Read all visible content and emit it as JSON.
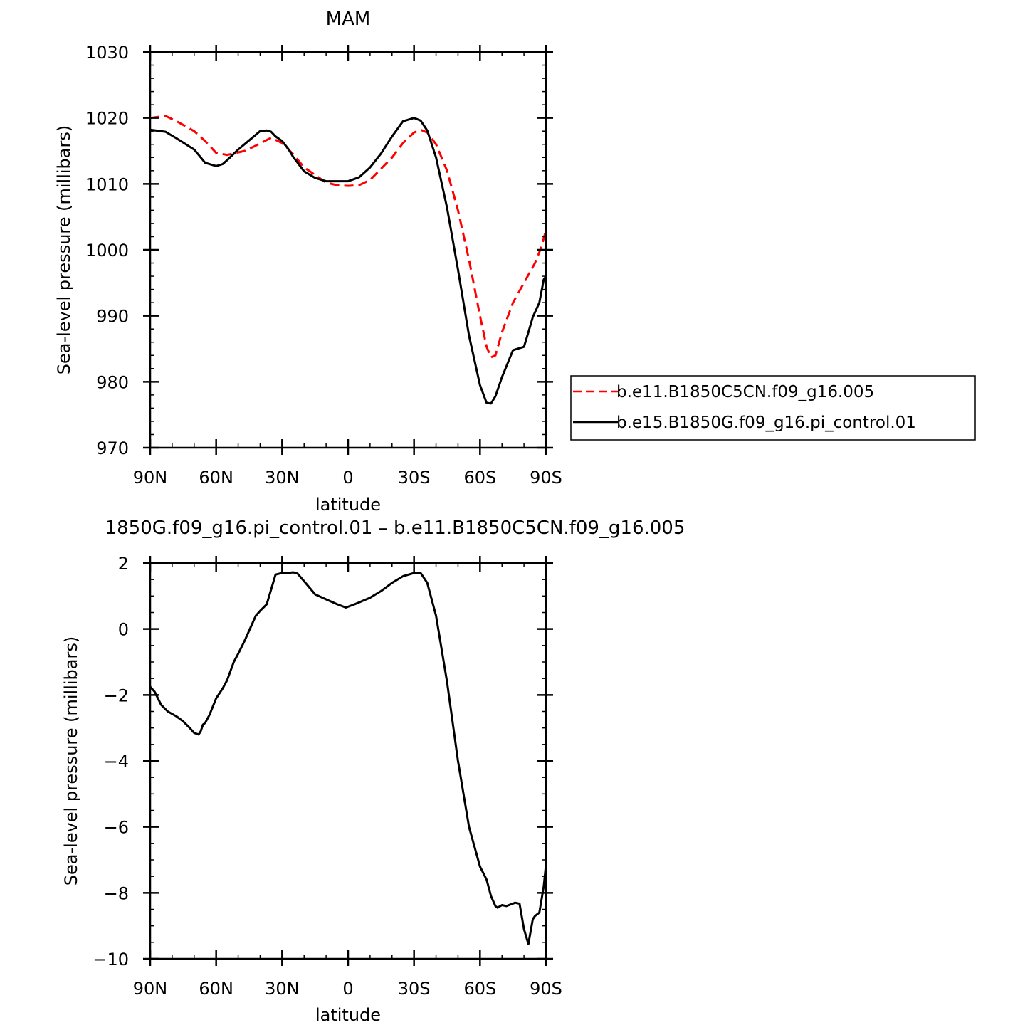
{
  "chart_data": [
    {
      "type": "line",
      "title": "MAM",
      "xlabel": "latitude",
      "ylabel": "Sea-level pressure (millibars)",
      "xlim": [
        90,
        -90
      ],
      "ylim": [
        970,
        1030
      ],
      "xticks": [
        {
          "value": 90,
          "label": "90N"
        },
        {
          "value": 60,
          "label": "60N"
        },
        {
          "value": 30,
          "label": "30N"
        },
        {
          "value": 0,
          "label": "0"
        },
        {
          "value": -30,
          "label": "30S"
        },
        {
          "value": -60,
          "label": "60S"
        },
        {
          "value": -90,
          "label": "90S"
        }
      ],
      "yticks": [
        {
          "value": 1030,
          "label": "1030"
        },
        {
          "value": 1020,
          "label": "1020"
        },
        {
          "value": 1010,
          "label": "1010"
        },
        {
          "value": 1000,
          "label": "1000"
        },
        {
          "value": 990,
          "label": "990"
        },
        {
          "value": 980,
          "label": "980"
        },
        {
          "value": 970,
          "label": "970"
        }
      ],
      "legend_position": "right",
      "series": [
        {
          "name": "b.e11.B1850C5CN.f09_g16.005",
          "color": "#ff0000",
          "dash": "dashed",
          "x": [
            90,
            83,
            78,
            70,
            65,
            60,
            55,
            47,
            42,
            35,
            30,
            25,
            20,
            10,
            5,
            0,
            -5,
            -10,
            -20,
            -25,
            -30,
            -33,
            -36,
            -40,
            -45,
            -50,
            -55,
            -60,
            -63,
            -65,
            -67,
            -70,
            -75,
            -80,
            -85,
            -88,
            -90
          ],
          "y": [
            1020.0,
            1020.3,
            1019.5,
            1018.0,
            1016.5,
            1014.7,
            1014.4,
            1015.0,
            1015.8,
            1017.0,
            1016.2,
            1014.5,
            1012.5,
            1010.2,
            1009.8,
            1009.7,
            1009.8,
            1010.6,
            1014.0,
            1016.2,
            1017.8,
            1018.2,
            1017.8,
            1016.0,
            1012.0,
            1006.0,
            998.5,
            990.0,
            985.3,
            983.7,
            984.0,
            987.5,
            992.0,
            995.0,
            998.0,
            1000.5,
            1003.0
          ]
        },
        {
          "name": "b.e15.B1850G.f09_g16.pi_control.01",
          "color": "#000000",
          "dash": "solid",
          "x": [
            90,
            83,
            78,
            70,
            65,
            60,
            57,
            55,
            50,
            45,
            40,
            37,
            35,
            33,
            30,
            27,
            25,
            20,
            15,
            10,
            5,
            0,
            -5,
            -10,
            -15,
            -20,
            -25,
            -30,
            -33,
            -36,
            -40,
            -45,
            -50,
            -55,
            -60,
            -63,
            -65,
            -67,
            -70,
            -75,
            -80,
            -82,
            -84,
            -87,
            -89,
            -90
          ],
          "y": [
            1018.2,
            1017.9,
            1016.9,
            1015.2,
            1013.2,
            1012.7,
            1013.0,
            1013.6,
            1015.2,
            1016.6,
            1018.0,
            1018.1,
            1017.9,
            1017.2,
            1016.5,
            1015.2,
            1014.1,
            1011.9,
            1010.9,
            1010.4,
            1010.4,
            1010.4,
            1011.0,
            1012.5,
            1014.6,
            1017.2,
            1019.5,
            1020.0,
            1019.6,
            1018.1,
            1014.0,
            1006.4,
            997.0,
            987.0,
            979.5,
            976.8,
            976.7,
            977.8,
            980.7,
            984.8,
            985.3,
            987.5,
            989.8,
            992.0,
            995.5,
            996.0
          ]
        }
      ]
    },
    {
      "type": "line",
      "title": "1850G.f09_g16.pi_control.01 – b.e11.B1850C5CN.f09_g16.005",
      "xlabel": "latitude",
      "ylabel": "Sea-level pressure (millibars)",
      "xlim": [
        90,
        -90
      ],
      "ylim": [
        -10,
        2
      ],
      "xticks": [
        {
          "value": 90,
          "label": "90N"
        },
        {
          "value": 60,
          "label": "60N"
        },
        {
          "value": 30,
          "label": "30N"
        },
        {
          "value": 0,
          "label": "0"
        },
        {
          "value": -30,
          "label": "30S"
        },
        {
          "value": -60,
          "label": "60S"
        },
        {
          "value": -90,
          "label": "90S"
        }
      ],
      "yticks": [
        {
          "value": 2,
          "label": "2"
        },
        {
          "value": 0,
          "label": "0"
        },
        {
          "value": -2,
          "label": "−2"
        },
        {
          "value": -4,
          "label": "−4"
        },
        {
          "value": -6,
          "label": "−6"
        },
        {
          "value": -8,
          "label": "−8"
        },
        {
          "value": -10,
          "label": "−10"
        }
      ],
      "series": [
        {
          "color": "#000000",
          "dash": "solid",
          "x": [
            90,
            88,
            85,
            82,
            78,
            75,
            72,
            70,
            68,
            67,
            66,
            65,
            63,
            60,
            57,
            55,
            52,
            50,
            47,
            45,
            42,
            40,
            37,
            35,
            33,
            30,
            27,
            25,
            23,
            20,
            15,
            10,
            5,
            1,
            -3,
            -10,
            -15,
            -20,
            -25,
            -30,
            -33,
            -36,
            -40,
            -45,
            -50,
            -55,
            -60,
            -63,
            -65,
            -67,
            -68,
            -70,
            -72,
            -74,
            -76,
            -78,
            -80,
            -82,
            -84,
            -85,
            -87,
            -89,
            -90
          ],
          "y": [
            -1.75,
            -1.9,
            -2.3,
            -2.5,
            -2.65,
            -2.8,
            -3.0,
            -3.15,
            -3.2,
            -3.1,
            -2.9,
            -2.85,
            -2.6,
            -2.1,
            -1.8,
            -1.55,
            -1.0,
            -0.75,
            -0.35,
            -0.05,
            0.4,
            0.55,
            0.75,
            1.2,
            1.65,
            1.7,
            1.7,
            1.72,
            1.68,
            1.45,
            1.05,
            0.9,
            0.75,
            0.65,
            0.75,
            0.95,
            1.15,
            1.4,
            1.6,
            1.7,
            1.7,
            1.4,
            0.4,
            -1.6,
            -4.0,
            -6.0,
            -7.2,
            -7.6,
            -8.1,
            -8.4,
            -8.45,
            -8.37,
            -8.4,
            -8.35,
            -8.3,
            -8.33,
            -9.1,
            -9.55,
            -8.8,
            -8.7,
            -8.6,
            -7.8,
            -7.15
          ]
        }
      ]
    }
  ]
}
